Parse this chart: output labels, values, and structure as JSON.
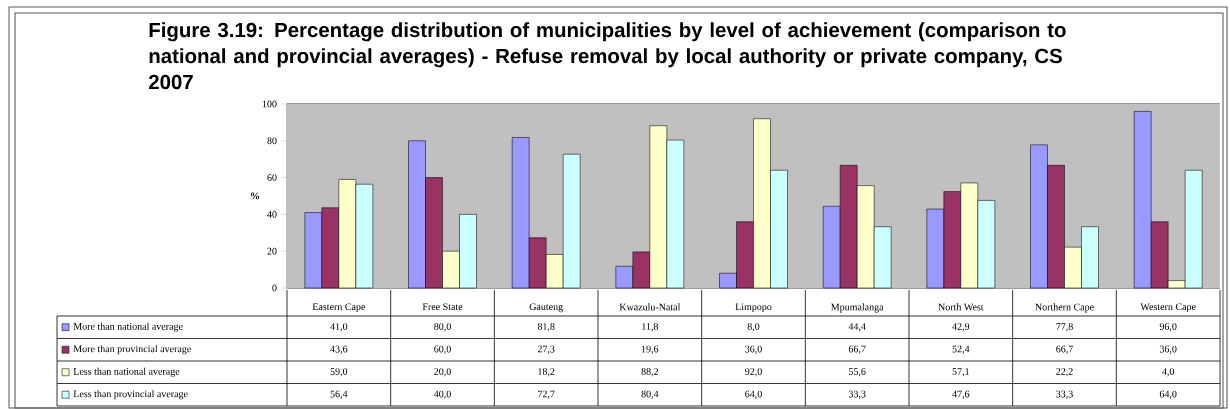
{
  "chart_data": {
    "type": "bar",
    "title": "Figure 3.19: Percentage distribution of municipalities by level of achievement (comparison to national and provincial averages) - Refuse removal by local authority or private company, CS 2007",
    "ylabel": "%",
    "categories": [
      "Eastern Cape",
      "Free State",
      "Gauteng",
      "Kwazulu-Natal",
      "Limpopo",
      "Mpumalanga",
      "North West",
      "Northern Cape",
      "Western Cape"
    ],
    "series": [
      {
        "name": "More than national average",
        "color": "#9999ff",
        "values": [
          41.0,
          80.0,
          81.8,
          11.8,
          8.0,
          44.4,
          42.9,
          77.8,
          96.0
        ],
        "value_labels": [
          "41,0",
          "80,0",
          "81,8",
          "11,8",
          "8,0",
          "44,4",
          "42,9",
          "77,8",
          "96,0"
        ]
      },
      {
        "name": "More than provincial average",
        "color": "#993366",
        "values": [
          43.6,
          60.0,
          27.3,
          19.6,
          36.0,
          66.7,
          52.4,
          66.7,
          36.0
        ],
        "value_labels": [
          "43,6",
          "60,0",
          "27,3",
          "19,6",
          "36,0",
          "66,7",
          "52,4",
          "66,7",
          "36,0"
        ]
      },
      {
        "name": "Less than national average",
        "color": "#ffffcc",
        "values": [
          59.0,
          20.0,
          18.2,
          88.2,
          92.0,
          55.6,
          57.1,
          22.2,
          4.0
        ],
        "value_labels": [
          "59,0",
          "20,0",
          "18,2",
          "88,2",
          "92,0",
          "55,6",
          "57,1",
          "22,2",
          "4,0"
        ]
      },
      {
        "name": "Less than provincial average",
        "color": "#ccffff",
        "values": [
          56.4,
          40.0,
          72.7,
          80.4,
          64.0,
          33.3,
          47.6,
          33.3,
          64.0
        ],
        "value_labels": [
          "56,4",
          "40,0",
          "72,7",
          "80,4",
          "64,0",
          "33,3",
          "47,6",
          "33,3",
          "64,0"
        ]
      }
    ],
    "ylim": [
      0,
      100
    ],
    "yticks": [
      0,
      20,
      40,
      60,
      80,
      100
    ],
    "grid": "y",
    "legend": "bottom"
  }
}
